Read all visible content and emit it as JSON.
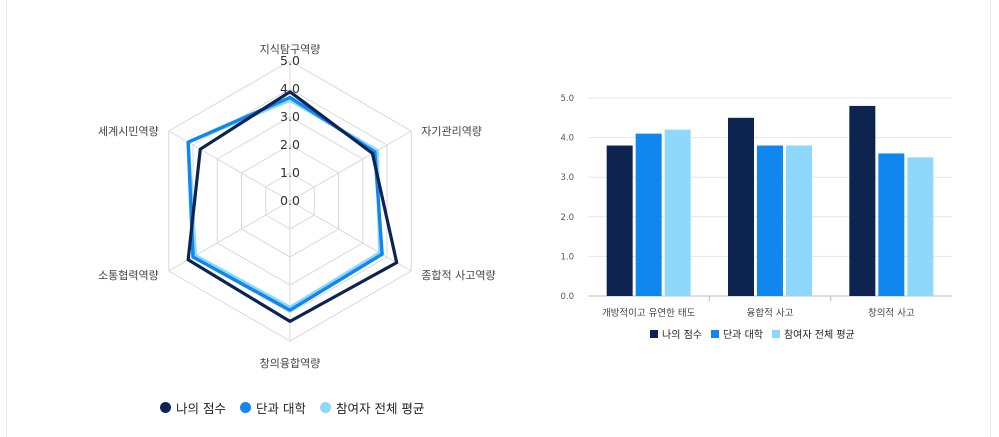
{
  "colors": {
    "my_score": "#0d2451",
    "college": "#1086ef",
    "average": "#8ed8fb",
    "grid": "#d9d9d9",
    "axis_text": "#444444"
  },
  "chart_data": [
    {
      "type": "radar",
      "axes": [
        "지식탐구역량",
        "자기관리역량",
        "종합적 사고역량",
        "창의융합역량",
        "소통협력역량",
        "세계시민역량"
      ],
      "tick_labels": [
        "0.0",
        "1.0",
        "2.0",
        "3.0",
        "4.0",
        "5.0"
      ],
      "range": [
        0,
        5
      ],
      "series": [
        {
          "name": "나의 점수",
          "values": [
            3.9,
            3.4,
            4.4,
            4.3,
            4.2,
            3.7
          ]
        },
        {
          "name": "단과 대학",
          "values": [
            3.7,
            3.5,
            3.8,
            3.9,
            4.0,
            4.2
          ]
        },
        {
          "name": "참여자 전체 평균",
          "values": [
            3.6,
            3.6,
            3.7,
            3.8,
            3.9,
            4.2
          ]
        }
      ],
      "legend": [
        "나의 점수",
        "단과 대학",
        "참여자 전체 평균"
      ],
      "legend_position": "bottom"
    },
    {
      "type": "bar",
      "categories": [
        "개방적이고 유연한 태도",
        "융합적 사고",
        "창의적 사고"
      ],
      "series": [
        {
          "name": "나의 점수",
          "values": [
            3.8,
            4.5,
            4.8
          ]
        },
        {
          "name": "단과 대학",
          "values": [
            4.1,
            3.8,
            3.6
          ]
        },
        {
          "name": "참여자 전체 평균",
          "values": [
            4.2,
            3.8,
            3.5
          ]
        }
      ],
      "tick_labels": [
        "0.0",
        "1.0",
        "2.0",
        "3.0",
        "4.0",
        "5.0"
      ],
      "ylim": [
        0,
        5
      ],
      "grid": true,
      "legend": [
        "나의 점수",
        "단과 대학",
        "참여자 전체 평균"
      ],
      "legend_position": "bottom"
    }
  ]
}
